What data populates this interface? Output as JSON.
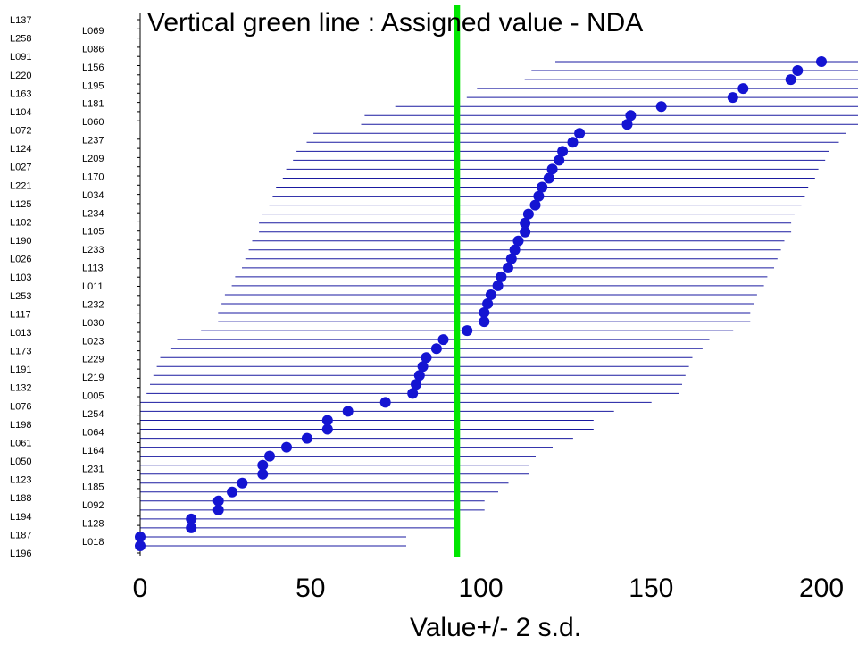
{
  "chart_data": {
    "type": "scatter",
    "title": "Vertical green line : Assigned value -  NDA",
    "xlabel": "Value+/- 2 s.d.",
    "ylabel": "",
    "xlim": [
      0,
      210
    ],
    "xticks": [
      0,
      50,
      100,
      150,
      200
    ],
    "assigned_value": 93,
    "grid": false,
    "colors": {
      "points": "#1414d2",
      "intervals": "#1a1aa0",
      "assigned_line": "#00e600"
    },
    "left_labels": [
      "L137",
      "L258",
      "L091",
      "L220",
      "L163",
      "L104",
      "L072",
      "L124",
      "L027",
      "L221",
      "L125",
      "L102",
      "L190",
      "L026",
      "L103",
      "L253",
      "L117",
      "L013",
      "L173",
      "L191",
      "L132",
      "L076",
      "L198",
      "L061",
      "L050",
      "L123",
      "L188",
      "L194",
      "L187",
      "L196"
    ],
    "right_labels": [
      "L069",
      "L086",
      "L156",
      "L195",
      "L181",
      "L060",
      "L237",
      "L209",
      "L170",
      "L034",
      "L234",
      "L105",
      "L233",
      "L113",
      "L011",
      "L232",
      "L030",
      "L023",
      "L229",
      "L219",
      "L005",
      "L254",
      "L064",
      "L164",
      "L231",
      "L185",
      "L092",
      "L128",
      "L018"
    ],
    "values": [
      0,
      0,
      15,
      15,
      23,
      23,
      27,
      30,
      36,
      36,
      38,
      43,
      49,
      55,
      55,
      61,
      72,
      80,
      81,
      82,
      83,
      84,
      87,
      89,
      96,
      101,
      101,
      102,
      103,
      105,
      106,
      108,
      109,
      110,
      111,
      113,
      113,
      114,
      116,
      117,
      118,
      120,
      121,
      123,
      124,
      127,
      129,
      143,
      144,
      153,
      174,
      177,
      191,
      193,
      200
    ]
  }
}
